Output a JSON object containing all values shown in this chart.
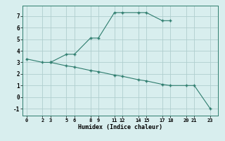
{
  "line1_x": [
    0,
    2,
    3,
    5,
    6,
    8,
    9,
    11,
    12,
    14,
    15,
    17,
    18
  ],
  "line1_y": [
    3.3,
    3.0,
    3.0,
    3.7,
    3.7,
    5.1,
    5.1,
    7.3,
    7.3,
    7.3,
    7.3,
    6.6,
    6.6
  ],
  "line2_x": [
    3,
    5,
    6,
    8,
    9,
    11,
    12,
    14,
    15,
    17,
    18,
    20,
    21,
    23
  ],
  "line2_y": [
    3.0,
    2.7,
    2.6,
    2.3,
    2.2,
    1.9,
    1.8,
    1.5,
    1.4,
    1.1,
    1.0,
    1.0,
    1.0,
    -1.0
  ],
  "line_color": "#2e7d6e",
  "bg_color": "#d8eeee",
  "grid_color": "#b0cece",
  "xlabel": "Humidex (Indice chaleur)",
  "xticks": [
    0,
    2,
    3,
    5,
    6,
    8,
    9,
    11,
    12,
    14,
    15,
    17,
    18,
    20,
    21,
    23
  ],
  "yticks": [
    -1,
    0,
    1,
    2,
    3,
    4,
    5,
    6,
    7
  ],
  "xlim": [
    -0.5,
    24.0
  ],
  "ylim": [
    -1.6,
    7.9
  ]
}
